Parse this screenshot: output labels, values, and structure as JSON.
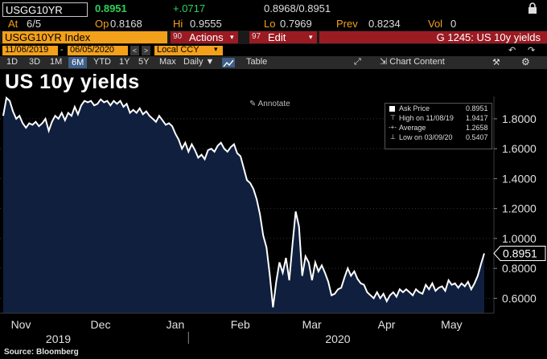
{
  "quote": {
    "ticker": "USGG10YR",
    "last": "0.8951",
    "change": "+.0717",
    "bid_ask": "0.8968/0.8951",
    "at_label": "At",
    "at_value": "6/5",
    "op_label": "Op",
    "op_value": "0.8168",
    "hi_label": "Hi",
    "hi_value": "0.9555",
    "lo_label": "Lo",
    "lo_value": "0.7969",
    "prev_label": "Prev",
    "prev_value": "0.8234",
    "vol_label": "Vol",
    "vol_value": "0"
  },
  "command": {
    "security": "USGG10YR Index",
    "actions_num": "90",
    "actions_label": "Actions",
    "edit_num": "97",
    "edit_label": "Edit",
    "function": "G 1245: US 10y yields"
  },
  "range": {
    "start": "11/06/2019",
    "end": "06/05/2020",
    "currency": "Local CCY"
  },
  "tabs": [
    "1D",
    "3D",
    "1M",
    "6M",
    "YTD",
    "1Y",
    "5Y",
    "Max"
  ],
  "selected_tab": "6M",
  "freq": "Daily",
  "table_label": "Table",
  "chart_content_label": "Chart Content",
  "chart_title": "US 10y yields",
  "annotate_label": "Annotate",
  "legend": {
    "ask_label": "Ask Price",
    "ask_value": "0.8951",
    "high_label": "High on 11/08/19",
    "high_value": "1.9417",
    "avg_label": "Average",
    "avg_value": "1.2658",
    "low_label": "Low on 03/09/20",
    "low_value": "0.5407"
  },
  "source": "Source: Bloomberg",
  "colors": {
    "accent_orange": "#f3a01b",
    "bar_red": "#9b1b23",
    "up_green": "#2fd15a",
    "area_fill": "#0f1f3d",
    "line": "#ffffff"
  },
  "chart_data": {
    "type": "area",
    "ylim": [
      0.5,
      1.95
    ],
    "yticks": [
      "1.8000",
      "1.6000",
      "1.4000",
      "1.2000",
      "1.0000",
      "0.8000",
      "0.6000"
    ],
    "ytick_values": [
      1.8,
      1.6,
      1.4,
      1.2,
      1.0,
      0.8,
      0.6
    ],
    "month_labels": [
      "Nov",
      "Dec",
      "Jan",
      "Feb",
      "Mar",
      "Apr",
      "May"
    ],
    "month_positions": [
      0.5,
      25,
      48,
      68,
      90,
      113,
      133
    ],
    "year_labels": [
      "2019",
      "2020"
    ],
    "year_positions": [
      12,
      98
    ],
    "last_value_label": "0.8951",
    "x_max": 148,
    "values": [
      1.82,
      1.94,
      1.92,
      1.85,
      1.8,
      1.82,
      1.77,
      1.74,
      1.77,
      1.76,
      1.78,
      1.75,
      1.77,
      1.8,
      1.72,
      1.78,
      1.82,
      1.8,
      1.84,
      1.79,
      1.84,
      1.82,
      1.88,
      1.83,
      1.89,
      1.92,
      1.91,
      1.92,
      1.89,
      1.9,
      1.93,
      1.91,
      1.92,
      1.89,
      1.92,
      1.9,
      1.92,
      1.88,
      1.9,
      1.84,
      1.86,
      1.84,
      1.87,
      1.83,
      1.85,
      1.82,
      1.8,
      1.78,
      1.82,
      1.79,
      1.76,
      1.77,
      1.75,
      1.7,
      1.66,
      1.6,
      1.64,
      1.58,
      1.63,
      1.59,
      1.54,
      1.56,
      1.53,
      1.59,
      1.6,
      1.58,
      1.62,
      1.64,
      1.6,
      1.58,
      1.61,
      1.63,
      1.57,
      1.55,
      1.47,
      1.39,
      1.37,
      1.33,
      1.26,
      1.16,
      1.02,
      0.94,
      0.76,
      0.54,
      0.71,
      0.84,
      0.77,
      0.87,
      0.72,
      0.96,
      1.18,
      1.08,
      0.75,
      0.88,
      0.84,
      0.72,
      0.84,
      0.78,
      0.82,
      0.77,
      0.71,
      0.62,
      0.63,
      0.66,
      0.67,
      0.74,
      0.8,
      0.75,
      0.78,
      0.73,
      0.7,
      0.69,
      0.64,
      0.62,
      0.6,
      0.64,
      0.6,
      0.63,
      0.58,
      0.62,
      0.64,
      0.61,
      0.66,
      0.64,
      0.66,
      0.64,
      0.62,
      0.66,
      0.64,
      0.63,
      0.69,
      0.66,
      0.7,
      0.65,
      0.67,
      0.68,
      0.65,
      0.72,
      0.69,
      0.7,
      0.67,
      0.7,
      0.68,
      0.71,
      0.66,
      0.7,
      0.75,
      0.83,
      0.9
    ]
  }
}
